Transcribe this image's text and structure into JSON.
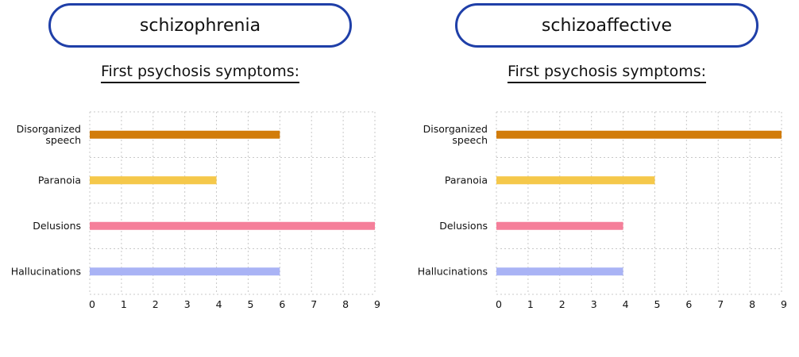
{
  "panels": [
    {
      "button_label": "schizophrenia",
      "subtitle": "First psychosis symptoms:"
    },
    {
      "button_label": "schizoaffective",
      "subtitle": "First psychosis symptoms:"
    }
  ],
  "chart_data": [
    {
      "type": "bar",
      "orientation": "horizontal",
      "title": "",
      "categories": [
        "Disorganized speech",
        "Paranoia",
        "Delusions",
        "Hallucinations"
      ],
      "values": [
        6,
        4,
        9,
        6
      ],
      "bar_colors": [
        "#d27c0a",
        "#f5c84a",
        "#f57f9a",
        "#a9b3f5"
      ],
      "xlim": [
        0,
        9
      ],
      "xticks": [
        0,
        1,
        2,
        3,
        4,
        5,
        6,
        7,
        8,
        9
      ],
      "grid": true,
      "legend": false
    },
    {
      "type": "bar",
      "orientation": "horizontal",
      "title": "",
      "categories": [
        "Disorganized speech",
        "Paranoia",
        "Delusions",
        "Hallucinations"
      ],
      "values": [
        9,
        5,
        4,
        4
      ],
      "bar_colors": [
        "#d27c0a",
        "#f5c84a",
        "#f57f9a",
        "#a9b3f5"
      ],
      "xlim": [
        0,
        9
      ],
      "xticks": [
        0,
        1,
        2,
        3,
        4,
        5,
        6,
        7,
        8,
        9
      ],
      "grid": true,
      "legend": false
    }
  ]
}
